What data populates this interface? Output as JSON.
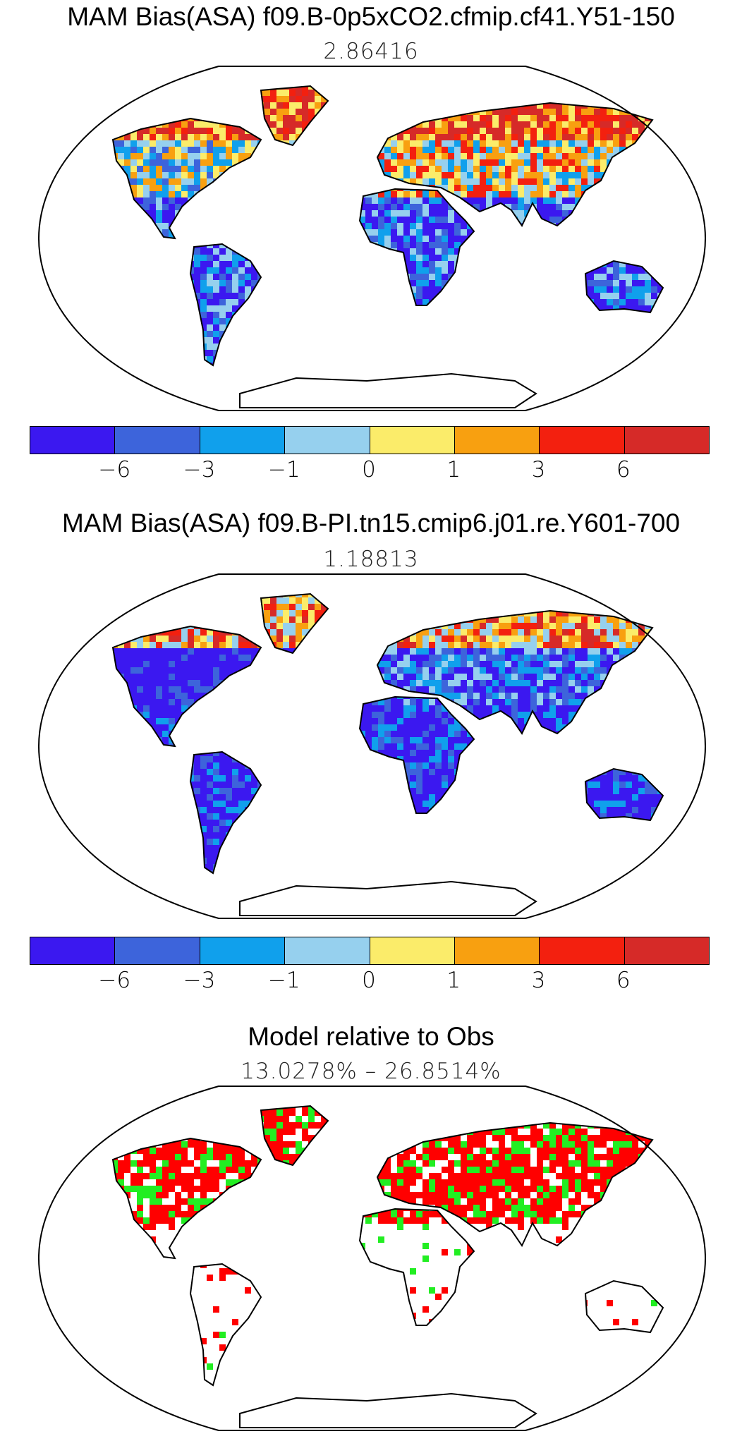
{
  "panels": [
    {
      "title": "MAM Bias(ASA) f09.B-0p5xCO2.cfmip.cf41.Y51-150",
      "subtitle": "2.86416",
      "variant": "bias1"
    },
    {
      "title": "MAM Bias(ASA) f09.B-PI.tn15.cmip6.j01.re.Y601-700",
      "subtitle": "1.18813",
      "variant": "bias2"
    },
    {
      "title": "Model relative to Obs",
      "subtitle": "13.0278% – 26.8514%",
      "variant": "rel"
    }
  ],
  "colorbar": {
    "colors": [
      "#3b18f0",
      "#3d64db",
      "#10a0ec",
      "#96d0ee",
      "#fbec6a",
      "#f8a010",
      "#f3200f",
      "#d62a28"
    ],
    "labels": [
      "−6",
      "−3",
      "−1",
      "0",
      "1",
      "3",
      "6"
    ]
  },
  "relative_colors": [
    "#ff0000",
    "#22ee22"
  ]
}
